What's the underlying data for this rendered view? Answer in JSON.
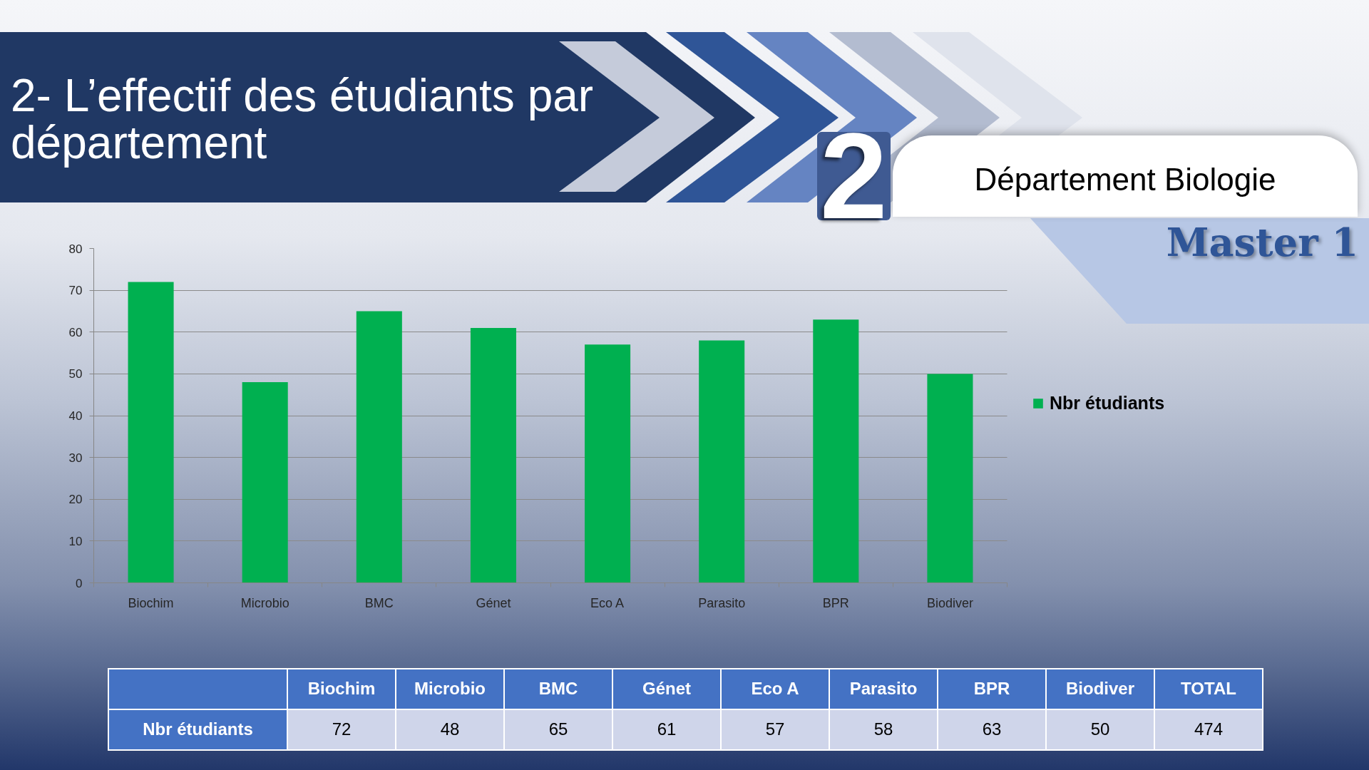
{
  "chart_data": {
    "type": "bar",
    "title": "2- L’effectif des étudiants par département",
    "subtitle": "Département Biologie",
    "categories": [
      "Biochim",
      "Microbio",
      "BMC",
      "Génet",
      "Eco A",
      "Parasito",
      "BPR",
      "Biodiver"
    ],
    "series": [
      {
        "name": "Nbr étudiants",
        "color": "#00b050",
        "values": [
          72,
          48,
          65,
          61,
          57,
          58,
          63,
          50
        ]
      }
    ],
    "ylim": [
      0,
      80
    ],
    "yticks": [
      0,
      10,
      20,
      30,
      40,
      50,
      60,
      70,
      80
    ],
    "grid": "y",
    "legend": "right",
    "annotations": [
      "2",
      "Master 1",
      "TOTAL",
      "72",
      "48",
      "65",
      "61",
      "57",
      "58",
      "63",
      "50",
      "474"
    ]
  }
}
